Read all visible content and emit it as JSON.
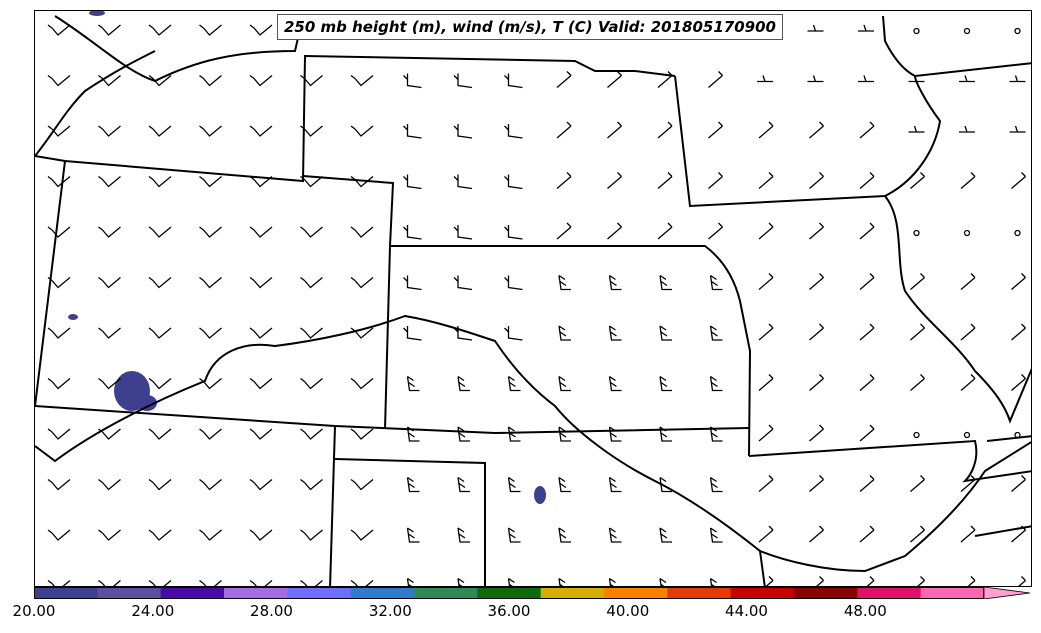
{
  "title": "250 mb height (m), wind (m/s), T (C) Valid: 201805170900",
  "colorbar": {
    "min": 20.0,
    "max": 52.0,
    "tick_labels": [
      "20.00",
      "24.00",
      "28.00",
      "32.00",
      "36.00",
      "40.00",
      "44.00",
      "48.00"
    ],
    "tick_values": [
      20,
      24,
      28,
      32,
      36,
      40,
      44,
      48
    ],
    "colors": [
      "#3f3f8f",
      "#5a4fa0",
      "#4b0aa8",
      "#a66be0",
      "#6e6eff",
      "#2e7ccc",
      "#2e8b57",
      "#0d6b0d",
      "#d4ae00",
      "#ff8000",
      "#e63a00",
      "#c80000",
      "#8b0000",
      "#e0106e",
      "#ff66b3"
    ],
    "extend_color": "#ffa0d0"
  },
  "colors": {
    "boundary": "#000000",
    "barb": "#000000",
    "temperature_fill": "#3f3f8f"
  }
}
